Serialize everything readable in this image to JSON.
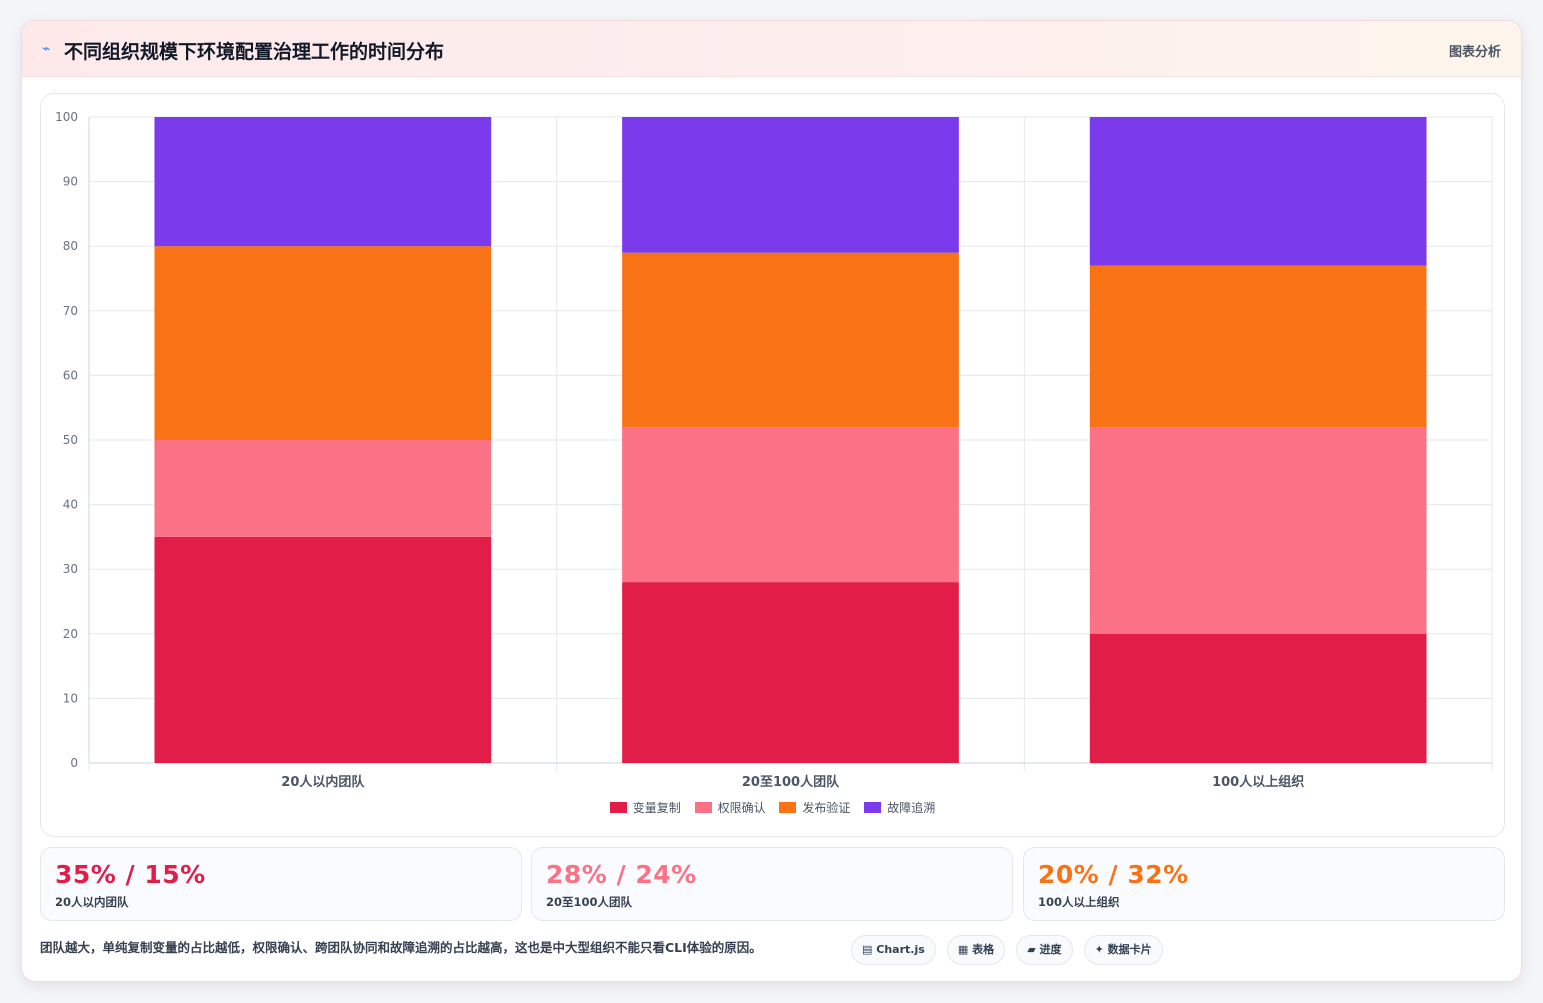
{
  "header": {
    "icon": "⌁",
    "title": "不同组织规模下环境配置治理工作的时间分布",
    "tag": "图表分析"
  },
  "chart_data": {
    "type": "bar",
    "stacked": true,
    "categories": [
      "20人以内团队",
      "20至100人团队",
      "100人以上组织"
    ],
    "series": [
      {
        "name": "变量复制",
        "color": "#e11d48",
        "values": [
          35,
          28,
          20
        ]
      },
      {
        "name": "权限确认",
        "color": "#fb7185",
        "values": [
          15,
          24,
          32
        ]
      },
      {
        "name": "发布验证",
        "color": "#f97316",
        "values": [
          30,
          27,
          25
        ]
      },
      {
        "name": "故障追溯",
        "color": "#7c3aed",
        "values": [
          20,
          21,
          23
        ]
      }
    ],
    "ylim": [
      0,
      100
    ],
    "yticks": [
      0,
      10,
      20,
      30,
      40,
      50,
      60,
      70,
      80,
      90,
      100
    ],
    "grid": true,
    "legend": "bottom"
  },
  "stats": [
    {
      "value": "35% / 15%",
      "label": "20人以内团队",
      "color": "#e11d48"
    },
    {
      "value": "28% / 24%",
      "label": "20至100人团队",
      "color": "#fb7185"
    },
    {
      "value": "20% / 32%",
      "label": "100人以上组织",
      "color": "#f97316"
    }
  ],
  "note": "团队越大，单纯复制变量的占比越低，权限确认、跨团队协同和故障追溯的占比越高，这也是中大型组织不能只看CLI体验的原因。",
  "chips": [
    {
      "icon": "▤",
      "label": "Chart.js"
    },
    {
      "icon": "▦",
      "label": "表格"
    },
    {
      "icon": "▰",
      "label": "进度"
    },
    {
      "icon": "✦",
      "label": "数据卡片"
    }
  ]
}
